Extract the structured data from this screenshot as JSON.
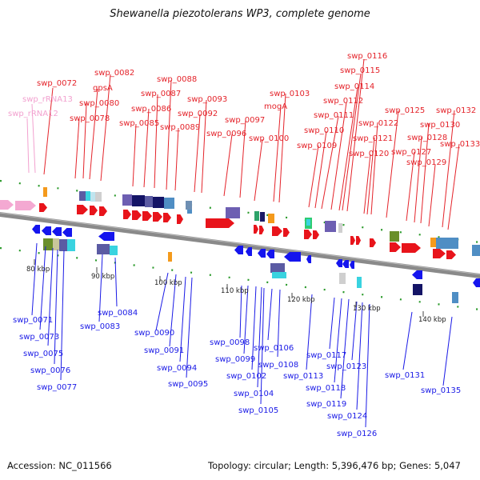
{
  "title": "Shewanella piezotolerans WP3, complete genome",
  "footer": {
    "accession": "Accession: NC_011566",
    "summary": "Topology: circular; Length: 5,396,476 bp; Genes: 5,047"
  },
  "colors": {
    "top_label": "#e4232a",
    "top_label_rna": "#f2a1cf",
    "bottom_label": "#1a1ae6",
    "forward_gene": "#e8141b",
    "reverse_gene": "#1515ee",
    "rna_gene": "#f4a9d2",
    "orange_gene": "#f49a1c",
    "backbone": "#8a8a8a",
    "tick": "#2a9a2a"
  },
  "scale_ticks": [
    "80 kbp",
    "90 kbp",
    "100 kbp",
    "110 kbp",
    "120 kbp",
    "130 kbp",
    "140 kbp"
  ],
  "top_labels": [
    "swp_rRNA12",
    "swp_rRNA13",
    "swp_0072",
    "swp_0078",
    "swp_0080",
    "gpsA",
    "swp_0082",
    "swp_0085",
    "swp_0086",
    "swp_0087",
    "swp_0088",
    "swp_0089",
    "swp_0092",
    "swp_0093",
    "swp_0096",
    "swp_0097",
    "swp_0100",
    "mogA",
    "swp_0103",
    "swp_0109",
    "swp_0110",
    "swp_0111",
    "swp_0112",
    "swp_0114",
    "swp_0115",
    "swp_0116",
    "swp_0120",
    "swp_0121",
    "swp_0122",
    "swp_0125",
    "swp_0127",
    "swp_0128",
    "swp_0129",
    "swp_0130",
    "swp_0132",
    "swp_0133"
  ],
  "bottom_labels": [
    "swp_0071",
    "swp_0073",
    "swp_0075",
    "swp_0076",
    "swp_0077",
    "swp_0083",
    "swp_0084",
    "swp_0090",
    "swp_0091",
    "swp_0094",
    "swp_0095",
    "swp_0098",
    "swp_0099",
    "swp_0102",
    "swp_0104",
    "swp_0105",
    "swp_0106",
    "swp_0108",
    "swp_0113",
    "swp_0117",
    "swp_0118",
    "swp_0119",
    "swp_0123",
    "swp_0124",
    "swp_0126",
    "swp_0131",
    "swp_0135"
  ]
}
